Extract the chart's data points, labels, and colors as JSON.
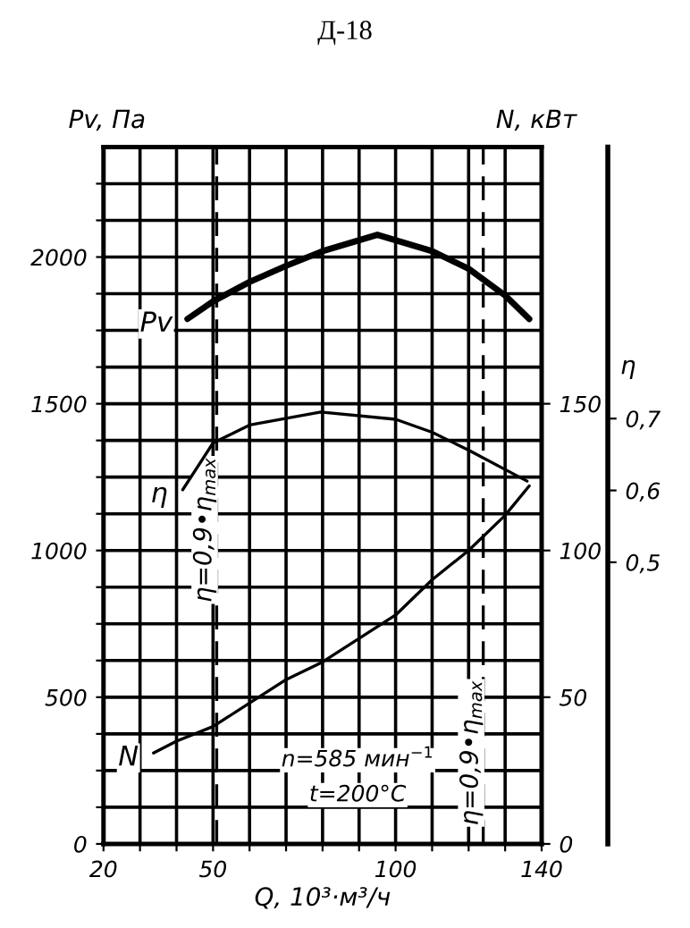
{
  "chart_data": {
    "type": "line",
    "title": "Д-18",
    "xlabel": "Q, 10³·м³/ч",
    "ylabel": "Pv, Па",
    "y2label": "N, кВт",
    "y3label": "η",
    "xlim": [
      20,
      140
    ],
    "xticks": [
      20,
      {
        "value": 30,
        "label": null
      },
      {
        "value": 40,
        "label": null
      },
      50,
      {
        "value": 60,
        "label": null
      },
      {
        "value": 70,
        "label": null
      },
      {
        "value": 80,
        "label": null
      },
      {
        "value": 90,
        "label": null
      },
      100,
      {
        "value": 110,
        "label": null
      },
      {
        "value": 120,
        "label": null
      },
      {
        "value": 130,
        "label": null
      },
      140
    ],
    "ylim": [
      0,
      2375
    ],
    "yticks": [
      0,
      {
        "value": 125,
        "label": null
      },
      {
        "value": 250,
        "label": null
      },
      {
        "value": 375,
        "label": null
      },
      500,
      {
        "value": 625,
        "label": null
      },
      {
        "value": 750,
        "label": null
      },
      {
        "value": 875,
        "label": null
      },
      1000,
      {
        "value": 1125,
        "label": null
      },
      {
        "value": 1250,
        "label": null
      },
      {
        "value": 1375,
        "label": null
      },
      1500,
      {
        "value": 1625,
        "label": null
      },
      {
        "value": 1750,
        "label": null
      },
      {
        "value": 1875,
        "label": null
      },
      2000,
      {
        "value": 2125,
        "label": null
      },
      {
        "value": 2250,
        "label": null
      }
    ],
    "y2lim": [
      0,
      237.5
    ],
    "y2ticks": [
      0,
      50,
      100,
      150
    ],
    "y3lim": [
      0.108,
      1.078
    ],
    "y3ticks": [
      {
        "value": 0.5,
        "label": "0,5"
      },
      {
        "value": 0.6,
        "label": "0,6"
      },
      {
        "value": 0.7,
        "label": "0,7"
      }
    ],
    "grid": true,
    "marker": "none",
    "line_style": "solid",
    "series": [
      {
        "name": "Pv",
        "color": "#000000",
        "x": [
          43,
          50,
          60,
          70,
          80,
          95,
          110,
          120,
          130,
          136.6
        ],
        "values": [
          1789,
          1849,
          1915,
          1970,
          2020,
          2076,
          2020,
          1960,
          1869,
          1789
        ]
      },
      {
        "name": "η",
        "color": "#000000",
        "axis": "y3",
        "x": [
          41.7,
          50,
          60,
          79.5,
          100,
          110,
          120,
          136
        ],
        "values": [
          0.601,
          0.666,
          0.691,
          0.709,
          0.699,
          0.681,
          0.656,
          0.613
        ]
      },
      {
        "name": "N",
        "color": "#000000",
        "axis": "y2",
        "x": [
          33.7,
          40,
          50,
          60,
          70,
          80,
          90,
          100,
          110,
          120,
          130,
          136.6
        ],
        "values": [
          31,
          35,
          40,
          48,
          56,
          62,
          70,
          78,
          90,
          100,
          112,
          122
        ]
      }
    ],
    "ref_lines": [
      {
        "axis": "x",
        "value": 51,
        "line_style": "dashed"
      },
      {
        "axis": "x",
        "value": 124,
        "line_style": "dashed"
      }
    ],
    "annotations": [
      {
        "text": "η=0,9•η$_{max}$",
        "x": 51,
        "y": 1070
      },
      {
        "text": "η=0,9•η$_{max}$",
        "x": 124,
        "y": 310
      },
      "n=585 мин$^{−1}$",
      "t=200°C"
    ]
  }
}
